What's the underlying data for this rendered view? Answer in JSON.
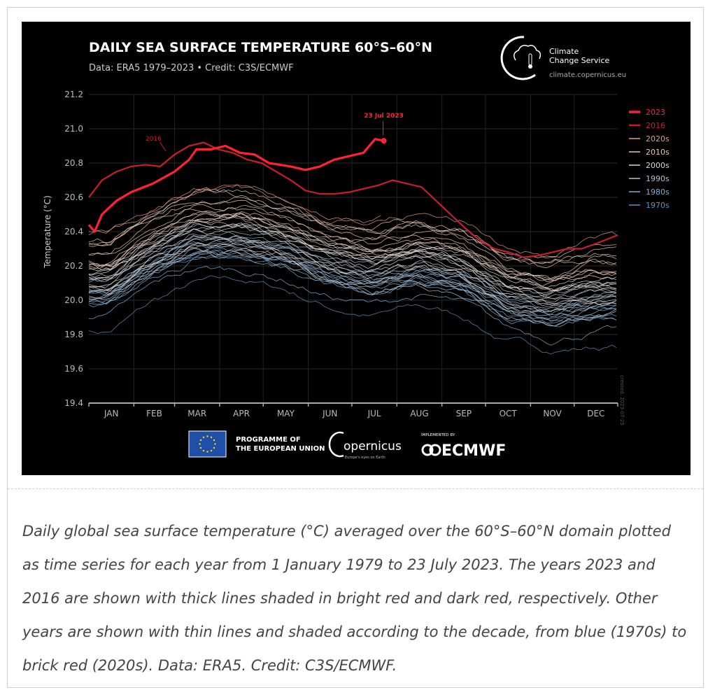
{
  "chart_data": {
    "type": "line",
    "title": "DAILY SEA SURFACE TEMPERATURE 60°S–60°N",
    "subtitle": "Data: ERA5 1979–2023 • Credit: C3S/ECMWF",
    "xlabel": "",
    "ylabel": "Temperature (°C)",
    "ylim": [
      19.4,
      21.2
    ],
    "yticks": [
      "19.4",
      "19.6",
      "19.8",
      "20.0",
      "20.2",
      "20.4",
      "20.6",
      "20.8",
      "21.0",
      "21.2"
    ],
    "xlim": [
      1,
      365
    ],
    "months": [
      "JAN",
      "FEB",
      "MAR",
      "APR",
      "MAY",
      "JUN",
      "JUL",
      "AUG",
      "SEP",
      "OCT",
      "NOV",
      "DEC"
    ],
    "grid": true,
    "legend_position": "right",
    "legend": [
      {
        "label": "2023",
        "color": "#ff2233"
      },
      {
        "label": "2016",
        "color": "#c81e2a"
      },
      {
        "label": "2020s",
        "color": "#e39a86"
      },
      {
        "label": "2010s",
        "color": "#e8c4b4"
      },
      {
        "label": "2000s",
        "color": "#ddd6d2"
      },
      {
        "label": "1990s",
        "color": "#b4c2cf"
      },
      {
        "label": "1980s",
        "color": "#82aed0"
      },
      {
        "label": "1970s",
        "color": "#5a92c4"
      }
    ],
    "series": [
      {
        "name": "2023",
        "color": "#ff2233",
        "width": 3.2,
        "x": [
          1,
          5,
          10,
          20,
          30,
          45,
          60,
          70,
          75,
          85,
          95,
          105,
          115,
          125,
          140,
          150,
          160,
          170,
          180,
          190,
          198,
          204
        ],
        "y": [
          20.44,
          20.4,
          20.5,
          20.58,
          20.63,
          20.68,
          20.75,
          20.82,
          20.88,
          20.88,
          20.9,
          20.86,
          20.85,
          20.8,
          20.78,
          20.76,
          20.78,
          20.82,
          20.84,
          20.86,
          20.94,
          20.93
        ]
      },
      {
        "name": "2016",
        "color": "#c81e2a",
        "width": 2.2,
        "x": [
          1,
          10,
          20,
          30,
          40,
          50,
          60,
          70,
          80,
          90,
          100,
          110,
          120,
          130,
          140,
          150,
          160,
          170,
          180,
          190,
          200,
          210,
          220,
          230,
          240,
          250,
          260,
          270,
          280,
          290,
          300,
          310,
          320,
          330,
          340,
          350,
          365
        ],
        "y": [
          20.6,
          20.7,
          20.75,
          20.78,
          20.79,
          20.78,
          20.85,
          20.9,
          20.92,
          20.88,
          20.86,
          20.82,
          20.8,
          20.75,
          20.7,
          20.64,
          20.62,
          20.62,
          20.63,
          20.65,
          20.67,
          20.7,
          20.68,
          20.66,
          20.58,
          20.5,
          20.42,
          20.35,
          20.3,
          20.28,
          20.25,
          20.26,
          20.28,
          20.3,
          20.3,
          20.33,
          20.38
        ]
      }
    ],
    "decade_means": {
      "month_mid_days": [
        15,
        46,
        74,
        105,
        135,
        166,
        196,
        227,
        258,
        288,
        319,
        349
      ],
      "1970s": {
        "years": 1,
        "values": [
          19.9,
          20.08,
          20.18,
          20.2,
          20.15,
          20.05,
          20.0,
          20.05,
          20.0,
          19.85,
          19.8,
          19.82
        ]
      },
      "1980s": {
        "years": 10,
        "values": [
          19.98,
          20.15,
          20.25,
          20.25,
          20.2,
          20.1,
          20.05,
          20.1,
          20.05,
          19.9,
          19.85,
          19.9
        ]
      },
      "1990s": {
        "years": 10,
        "values": [
          20.05,
          20.22,
          20.32,
          20.32,
          20.27,
          20.17,
          20.12,
          20.17,
          20.12,
          19.98,
          19.93,
          19.98
        ]
      },
      "2000s": {
        "years": 10,
        "values": [
          20.12,
          20.3,
          20.4,
          20.4,
          20.35,
          20.25,
          20.2,
          20.25,
          20.2,
          20.06,
          20.02,
          20.06
        ]
      },
      "2010s": {
        "years": 10,
        "values": [
          20.25,
          20.42,
          20.52,
          20.53,
          20.47,
          20.37,
          20.32,
          20.38,
          20.33,
          20.18,
          20.14,
          20.2
        ]
      },
      "2020s": {
        "years": 2,
        "values": [
          20.4,
          20.55,
          20.65,
          20.65,
          20.58,
          20.48,
          20.45,
          20.5,
          20.45,
          20.3,
          20.25,
          20.35
        ]
      }
    },
    "annotations": [
      {
        "text": "23 Jul 2023",
        "color": "#ff2233"
      },
      {
        "text": "2016",
        "color": "#c81e2a"
      }
    ],
    "side_note": "created: 2023-07-25"
  },
  "branding": {
    "c3s_line1": "Climate",
    "c3s_line2": "Change Service",
    "c3s_url": "climate.copernicus.eu",
    "eu_line1": "PROGRAMME OF",
    "eu_line2": "THE EUROPEAN UNION",
    "copernicus": "opernicus",
    "copernicus_tag": "Europe's eyes on Earth",
    "implemented_by": "IMPLEMENTED BY",
    "ecmwf": "ECMWF"
  },
  "caption": "Daily global sea surface temperature (°C) averaged over the 60°S–60°N domain plotted as time series for each year from 1 January 1979 to 23 July 2023. The years 2023 and 2016 are shown with thick lines shaded in bright red and dark red, respectively. Other years are shown with thin lines and shaded according to the decade, from blue (1970s) to brick red (2020s). Data: ERA5. Credit: C3S/ECMWF."
}
